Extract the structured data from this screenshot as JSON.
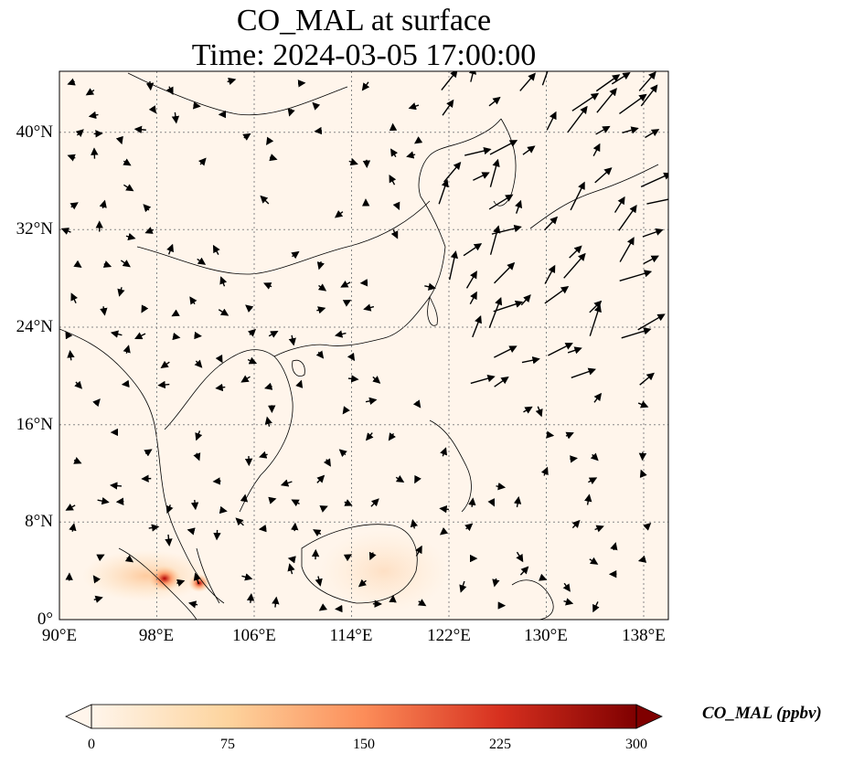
{
  "title_line1": "CO_MAL at surface",
  "title_line2": "Time: 2024-03-05 17:00:00",
  "lon_ticks": [
    "90°E",
    "98°E",
    "106°E",
    "114°E",
    "122°E",
    "130°E",
    "138°E"
  ],
  "lat_ticks": [
    "40°N",
    "32°N",
    "24°N",
    "16°N",
    "8°N",
    "0°"
  ],
  "colorbar": {
    "label": "CO_MAL (ppbv)",
    "ticks": [
      "0",
      "75",
      "150",
      "225",
      "300"
    ],
    "min": 0,
    "max": 300,
    "colormap": [
      "#fff5eb",
      "#fdd49e",
      "#fdae6b",
      "#f16913",
      "#d7301f",
      "#7f0000"
    ]
  },
  "map": {
    "lon_range": [
      90,
      140
    ],
    "lat_range": [
      0,
      45
    ],
    "ocean_color": "#fff5eb",
    "hotspots": [
      {
        "name": "Sumatra",
        "level": 0.9
      },
      {
        "name": "Malay Peninsula",
        "level": 0.7
      },
      {
        "name": "Borneo",
        "level": 0.15
      }
    ]
  }
}
